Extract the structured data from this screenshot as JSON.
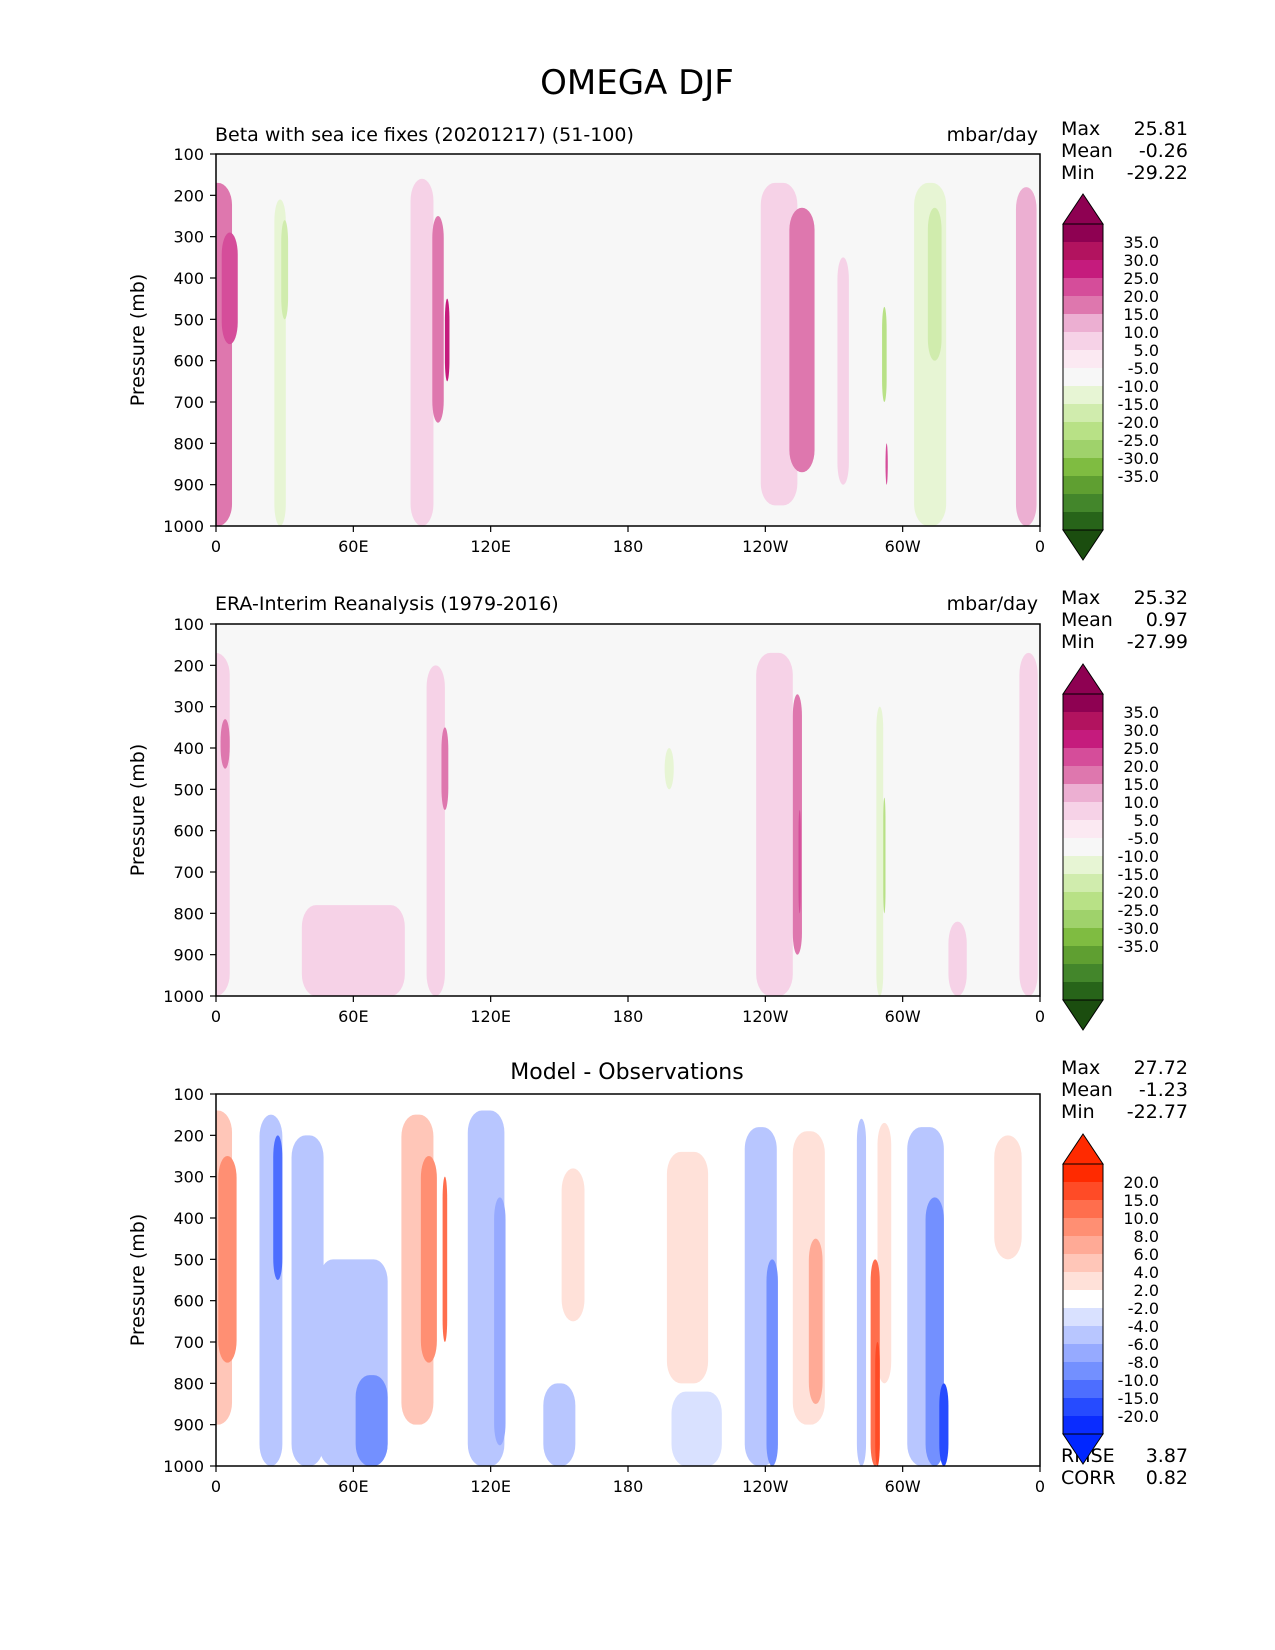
{
  "figure": {
    "title": "OMEGA DJF"
  },
  "chart_data": [
    {
      "type": "heatmap",
      "title": "Beta with sea ice fixes (20201217) (51-100)",
      "units": "mbar/day",
      "ylabel": "Pressure (mb)",
      "xlim": [
        0,
        360
      ],
      "ylim": [
        1000,
        100
      ],
      "x_ticks": [
        "0",
        "60E",
        "120E",
        "180",
        "120W",
        "60W",
        "0"
      ],
      "y_ticks": [
        "100",
        "200",
        "300",
        "400",
        "500",
        "600",
        "700",
        "800",
        "900",
        "1000"
      ],
      "stats": {
        "max_label": "Max",
        "max": "25.81",
        "mean_label": "Mean",
        "mean": "-0.26",
        "min_label": "Min",
        "min": "-29.22"
      },
      "colorbar": {
        "labels": [
          "35.0",
          "30.0",
          "25.0",
          "20.0",
          "15.0",
          "10.0",
          "5.0",
          "-5.0",
          "-10.0",
          "-15.0",
          "-20.0",
          "-25.0",
          "-30.0",
          "-35.0"
        ],
        "colors": [
          "#8e0152",
          "#b2135f",
          "#c51b7d",
          "#d54d9a",
          "#de77ae",
          "#ecafd2",
          "#f6d2e7",
          "#fbe9f2",
          "#f7f7f7",
          "#e7f5d4",
          "#d0ecad",
          "#b8e186",
          "#9fd26b",
          "#7fbc41",
          "#5f9f31",
          "#43862b",
          "#276419"
        ],
        "under_color": "#1b4d0f",
        "over_color": "#8e0152"
      },
      "features": [
        {
          "lon": 0,
          "width": 14,
          "top": 170,
          "bottom": 1000,
          "value": 16
        },
        {
          "lon": 6,
          "width": 7,
          "top": 290,
          "bottom": 560,
          "value": 25
        },
        {
          "lon": 28,
          "width": 5,
          "top": 210,
          "bottom": 1000,
          "value": -11
        },
        {
          "lon": 30,
          "width": 3,
          "top": 260,
          "bottom": 500,
          "value": -16
        },
        {
          "lon": 90,
          "width": 10,
          "top": 160,
          "bottom": 1000,
          "value": 7
        },
        {
          "lon": 97,
          "width": 5,
          "top": 250,
          "bottom": 750,
          "value": 18
        },
        {
          "lon": 101,
          "width": 2,
          "top": 450,
          "bottom": 650,
          "value": 27
        },
        {
          "lon": 135,
          "width": 22,
          "top": 200,
          "bottom": 1000,
          "value": -6
        },
        {
          "lon": 175,
          "width": 26,
          "top": 190,
          "bottom": 830,
          "value": -8
        },
        {
          "lon": 246,
          "width": 16,
          "top": 170,
          "bottom": 950,
          "value": 8
        },
        {
          "lon": 256,
          "width": 11,
          "top": 230,
          "bottom": 870,
          "value": 18
        },
        {
          "lon": 274,
          "width": 5,
          "top": 350,
          "bottom": 900,
          "value": 9
        },
        {
          "lon": 292,
          "width": 2,
          "top": 470,
          "bottom": 700,
          "value": -22
        },
        {
          "lon": 293,
          "width": 1,
          "top": 800,
          "bottom": 900,
          "value": 22
        },
        {
          "lon": 312,
          "width": 14,
          "top": 170,
          "bottom": 1000,
          "value": -10
        },
        {
          "lon": 314,
          "width": 6,
          "top": 230,
          "bottom": 600,
          "value": -16
        },
        {
          "lon": 354,
          "width": 9,
          "top": 180,
          "bottom": 1000,
          "value": 12
        }
      ]
    },
    {
      "type": "heatmap",
      "title": "ERA-Interim Reanalysis (1979-2016)",
      "units": "mbar/day",
      "ylabel": "Pressure (mb)",
      "xlim": [
        0,
        360
      ],
      "ylim": [
        1000,
        100
      ],
      "x_ticks": [
        "0",
        "60E",
        "120E",
        "180",
        "120W",
        "60W",
        "0"
      ],
      "y_ticks": [
        "100",
        "200",
        "300",
        "400",
        "500",
        "600",
        "700",
        "800",
        "900",
        "1000"
      ],
      "stats": {
        "max_label": "Max",
        "max": "25.32",
        "mean_label": "Mean",
        "mean": "0.97",
        "min_label": "Min",
        "min": "-27.99"
      },
      "colorbar": {
        "labels": [
          "35.0",
          "30.0",
          "25.0",
          "20.0",
          "15.0",
          "10.0",
          "5.0",
          "-5.0",
          "-10.0",
          "-15.0",
          "-20.0",
          "-25.0",
          "-30.0",
          "-35.0"
        ],
        "colors": [
          "#8e0152",
          "#b2135f",
          "#c51b7d",
          "#d54d9a",
          "#de77ae",
          "#ecafd2",
          "#f6d2e7",
          "#fbe9f2",
          "#f7f7f7",
          "#e7f5d4",
          "#d0ecad",
          "#b8e186",
          "#9fd26b",
          "#7fbc41",
          "#5f9f31",
          "#43862b",
          "#276419"
        ],
        "under_color": "#1b4d0f",
        "over_color": "#8e0152"
      },
      "features": [
        {
          "lon": 0,
          "width": 12,
          "top": 170,
          "bottom": 1000,
          "value": 9
        },
        {
          "lon": 4,
          "width": 4,
          "top": 330,
          "bottom": 450,
          "value": 18
        },
        {
          "lon": 60,
          "width": 45,
          "top": 780,
          "bottom": 1000,
          "value": 6
        },
        {
          "lon": 96,
          "width": 8,
          "top": 200,
          "bottom": 1000,
          "value": 8
        },
        {
          "lon": 100,
          "width": 3,
          "top": 350,
          "bottom": 550,
          "value": 18
        },
        {
          "lon": 145,
          "width": 32,
          "top": 190,
          "bottom": 870,
          "value": -7
        },
        {
          "lon": 198,
          "width": 4,
          "top": 400,
          "bottom": 500,
          "value": -14
        },
        {
          "lon": 244,
          "width": 16,
          "top": 170,
          "bottom": 1000,
          "value": 9
        },
        {
          "lon": 254,
          "width": 4,
          "top": 270,
          "bottom": 900,
          "value": 18
        },
        {
          "lon": 255,
          "width": 1,
          "top": 550,
          "bottom": 800,
          "value": 25
        },
        {
          "lon": 290,
          "width": 3,
          "top": 300,
          "bottom": 1000,
          "value": -12
        },
        {
          "lon": 292,
          "width": 1,
          "top": 520,
          "bottom": 800,
          "value": -22
        },
        {
          "lon": 310,
          "width": 12,
          "top": 160,
          "bottom": 950,
          "value": -7
        },
        {
          "lon": 324,
          "width": 8,
          "top": 820,
          "bottom": 1000,
          "value": 9
        },
        {
          "lon": 355,
          "width": 8,
          "top": 170,
          "bottom": 1000,
          "value": 8
        }
      ]
    },
    {
      "type": "heatmap",
      "title": "Model - Observations",
      "units": "",
      "ylabel": "Pressure (mb)",
      "xlim": [
        0,
        360
      ],
      "ylim": [
        1000,
        100
      ],
      "x_ticks": [
        "0",
        "60E",
        "120E",
        "180",
        "120W",
        "60W",
        "0"
      ],
      "y_ticks": [
        "100",
        "200",
        "300",
        "400",
        "500",
        "600",
        "700",
        "800",
        "900",
        "1000"
      ],
      "stats": {
        "max_label": "Max",
        "max": "27.72",
        "mean_label": "Mean",
        "mean": "-1.23",
        "min_label": "Min",
        "min": "-22.77"
      },
      "extra_stats": {
        "rmse_label": "RMSE",
        "rmse": "3.87",
        "corr_label": "CORR",
        "corr": "0.82"
      },
      "colorbar": {
        "labels": [
          "20.0",
          "15.0",
          "10.0",
          "8.0",
          "6.0",
          "4.0",
          "2.0",
          "-2.0",
          "-4.0",
          "-6.0",
          "-8.0",
          "-10.0",
          "-15.0",
          "-20.0"
        ],
        "colors": [
          "#ff2a00",
          "#ff4b26",
          "#ff6e4d",
          "#ff8f73",
          "#ffaa96",
          "#ffc6b8",
          "#ffe1d9",
          "#ffffff",
          "#d9e1ff",
          "#b8c6ff",
          "#96aaff",
          "#7390ff",
          "#4d6eff",
          "#264bff",
          "#0a2cff"
        ],
        "under_color": "#0026ff",
        "over_color": "#ff2a00"
      },
      "features": [
        {
          "lon": 0,
          "width": 14,
          "top": 140,
          "bottom": 900,
          "value": 5
        },
        {
          "lon": 5,
          "width": 8,
          "top": 250,
          "bottom": 750,
          "value": 9
        },
        {
          "lon": 24,
          "width": 10,
          "top": 150,
          "bottom": 1000,
          "value": -5
        },
        {
          "lon": 27,
          "width": 4,
          "top": 200,
          "bottom": 550,
          "value": -11
        },
        {
          "lon": 40,
          "width": 14,
          "top": 200,
          "bottom": 1000,
          "value": -4
        },
        {
          "lon": 60,
          "width": 30,
          "top": 500,
          "bottom": 1000,
          "value": -5
        },
        {
          "lon": 68,
          "width": 14,
          "top": 780,
          "bottom": 1000,
          "value": -9
        },
        {
          "lon": 88,
          "width": 14,
          "top": 150,
          "bottom": 900,
          "value": 5
        },
        {
          "lon": 93,
          "width": 7,
          "top": 250,
          "bottom": 750,
          "value": 9
        },
        {
          "lon": 100,
          "width": 2,
          "top": 300,
          "bottom": 700,
          "value": 14
        },
        {
          "lon": 118,
          "width": 16,
          "top": 140,
          "bottom": 1000,
          "value": -4
        },
        {
          "lon": 124,
          "width": 5,
          "top": 350,
          "bottom": 950,
          "value": -7
        },
        {
          "lon": 150,
          "width": 14,
          "top": 800,
          "bottom": 1000,
          "value": -4
        },
        {
          "lon": 156,
          "width": 10,
          "top": 280,
          "bottom": 650,
          "value": 3
        },
        {
          "lon": 210,
          "width": 22,
          "top": 820,
          "bottom": 1000,
          "value": -3
        },
        {
          "lon": 206,
          "width": 18,
          "top": 240,
          "bottom": 800,
          "value": 3
        },
        {
          "lon": 238,
          "width": 14,
          "top": 180,
          "bottom": 1000,
          "value": -4
        },
        {
          "lon": 243,
          "width": 5,
          "top": 500,
          "bottom": 1000,
          "value": -9
        },
        {
          "lon": 259,
          "width": 14,
          "top": 190,
          "bottom": 900,
          "value": 4
        },
        {
          "lon": 262,
          "width": 6,
          "top": 450,
          "bottom": 850,
          "value": 7
        },
        {
          "lon": 282,
          "width": 4,
          "top": 160,
          "bottom": 1000,
          "value": -5
        },
        {
          "lon": 288,
          "width": 4,
          "top": 500,
          "bottom": 1000,
          "value": 12
        },
        {
          "lon": 289,
          "width": 2,
          "top": 700,
          "bottom": 1000,
          "value": 18
        },
        {
          "lon": 292,
          "width": 6,
          "top": 170,
          "bottom": 800,
          "value": 3
        },
        {
          "lon": 310,
          "width": 16,
          "top": 180,
          "bottom": 1000,
          "value": -5
        },
        {
          "lon": 314,
          "width": 8,
          "top": 350,
          "bottom": 1000,
          "value": -9
        },
        {
          "lon": 318,
          "width": 4,
          "top": 800,
          "bottom": 1000,
          "value": -18
        },
        {
          "lon": 346,
          "width": 12,
          "top": 200,
          "bottom": 500,
          "value": 3
        }
      ]
    }
  ]
}
